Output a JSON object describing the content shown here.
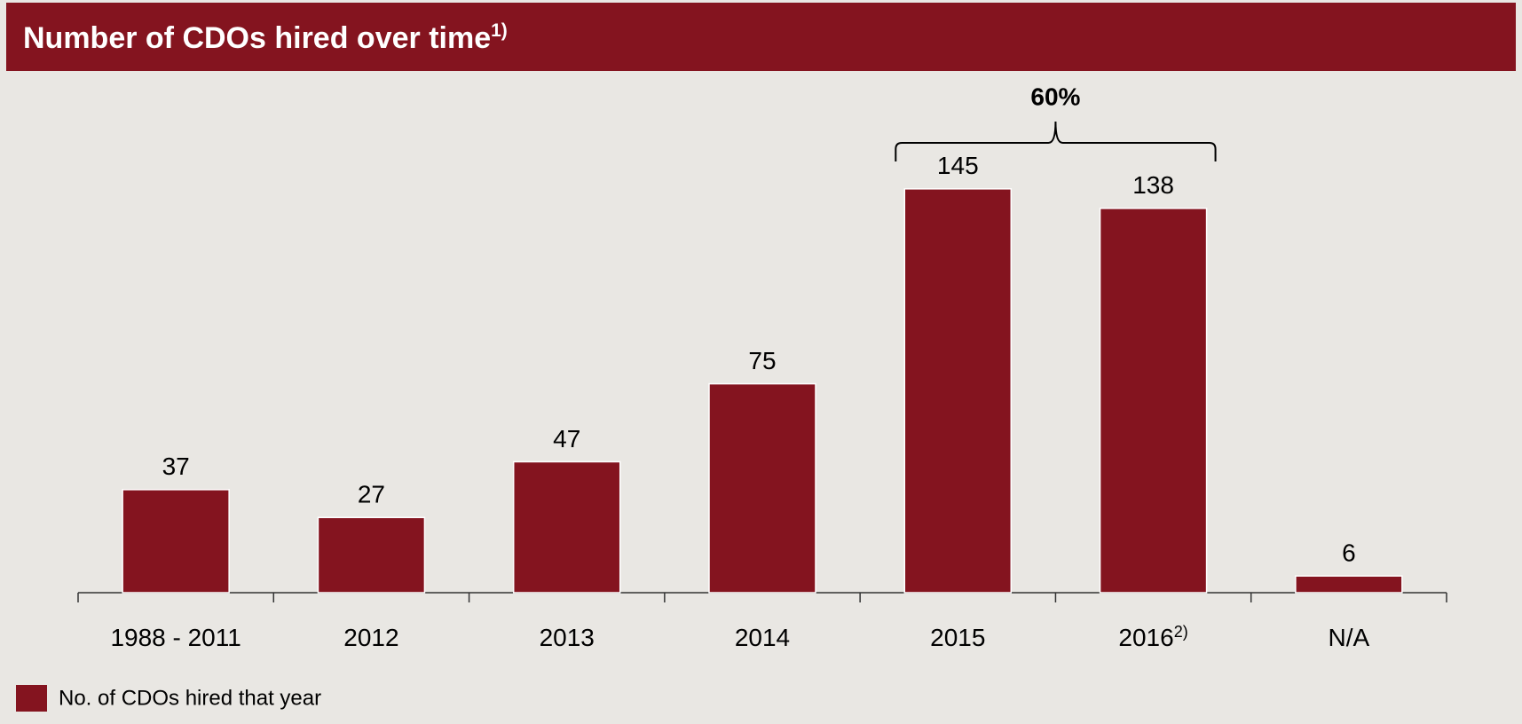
{
  "chart_data": {
    "type": "bar",
    "title": "Number of CDOs hired over time",
    "title_footnote": "1)",
    "categories": [
      "1988 - 2011",
      "2012",
      "2013",
      "2014",
      "2015",
      "2016",
      "N/A"
    ],
    "category_footnotes": [
      null,
      null,
      null,
      null,
      null,
      "2)",
      null
    ],
    "values": [
      37,
      27,
      47,
      75,
      145,
      138,
      6
    ],
    "color": "#84141f",
    "annotation": "60%",
    "legend": "No. of CDOs hired that year"
  }
}
